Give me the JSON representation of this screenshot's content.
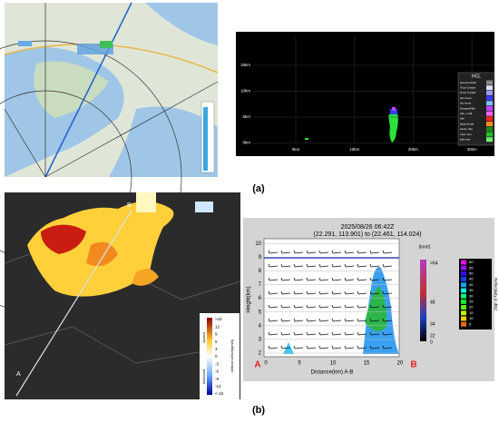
{
  "panel_a": {
    "label": "(a)",
    "rhi": {
      "y_labels": [
        "15km",
        "10km",
        "5km",
        "0km"
      ],
      "x_labels": [
        "0km",
        "10km",
        "20km",
        "30km"
      ],
      "legend_title": "HCL",
      "legend": [
        "ground clutter",
        "V.Ice Crystal",
        "H.Ice Crystal",
        "wet snow",
        "dry snow",
        "Graupel/Hail",
        "rain + hail",
        "hail",
        "large drops",
        "heavy rain",
        "mod. rain",
        "light rain"
      ]
    }
  },
  "panel_b": {
    "label": "(b)",
    "map": {
      "start": "A",
      "end": "B",
      "colorbar": {
        "ticks": [
          ">15",
          "12",
          "9",
          "6",
          "3",
          "0",
          "-3",
          "-6",
          "-9",
          "-12",
          "<-15"
        ],
        "upward": "upward",
        "downward": "downward",
        "title": "vertical velocity(m/s)"
      }
    },
    "cross_section": {
      "title": "2025/08/26 06:42Z",
      "subtitle": "(22.291, 113.901) to (22.461, 114.024)",
      "y_label": "Height(km)",
      "yticks": [
        "2",
        "3",
        "4",
        "5",
        "6",
        "7",
        "8",
        "9",
        "10"
      ],
      "x_label": "Distance(km) A-B",
      "xticks": [
        "0",
        "5",
        "10",
        "15",
        "20"
      ],
      "start": "A",
      "end": "B",
      "wind_unit": "(knot)",
      "wind_ticks": [
        ">64",
        "48",
        "34",
        "22",
        "0"
      ],
      "refl_ticks": [
        "60",
        "55",
        "50",
        "45",
        "40",
        "35",
        "30",
        "25",
        "20",
        "15",
        "10",
        "5"
      ],
      "refl_title": "Reflectivity in dBZ"
    }
  }
}
